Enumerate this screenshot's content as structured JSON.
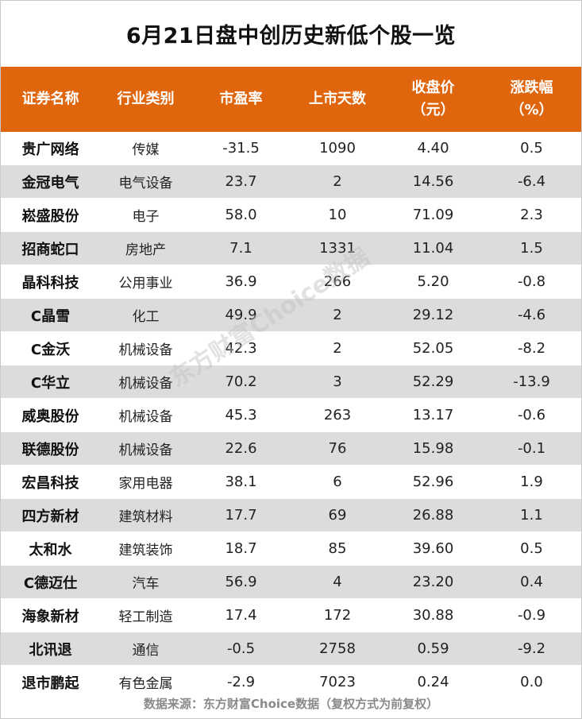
{
  "title": "6月21日盘中创历史新低个股一览",
  "headers": {
    "name": "证券名称",
    "industry": "行业类别",
    "pe": "市盈率",
    "days": "上市天数",
    "close_line1": "收盘价",
    "close_line2": "（元）",
    "change_line1": "涨跌幅",
    "change_line2": "（%）"
  },
  "rows": [
    {
      "name": "贵广网络",
      "industry": "传媒",
      "pe": "-31.5",
      "days": "1090",
      "close": "4.40",
      "change": "0.5"
    },
    {
      "name": "金冠电气",
      "industry": "电气设备",
      "pe": "23.7",
      "days": "2",
      "close": "14.56",
      "change": "-6.4"
    },
    {
      "name": "崧盛股份",
      "industry": "电子",
      "pe": "58.0",
      "days": "10",
      "close": "71.09",
      "change": "2.3"
    },
    {
      "name": "招商蛇口",
      "industry": "房地产",
      "pe": "7.1",
      "days": "1331",
      "close": "11.04",
      "change": "1.5"
    },
    {
      "name": "晶科科技",
      "industry": "公用事业",
      "pe": "36.9",
      "days": "266",
      "close": "5.20",
      "change": "-0.8"
    },
    {
      "name": "C晶雪",
      "industry": "化工",
      "pe": "49.9",
      "days": "2",
      "close": "29.12",
      "change": "-4.6"
    },
    {
      "name": "C金沃",
      "industry": "机械设备",
      "pe": "42.3",
      "days": "2",
      "close": "52.05",
      "change": "-8.2"
    },
    {
      "name": "C华立",
      "industry": "机械设备",
      "pe": "70.2",
      "days": "3",
      "close": "52.29",
      "change": "-13.9"
    },
    {
      "name": "威奥股份",
      "industry": "机械设备",
      "pe": "45.3",
      "days": "263",
      "close": "13.17",
      "change": "-0.6"
    },
    {
      "name": "联德股份",
      "industry": "机械设备",
      "pe": "22.6",
      "days": "76",
      "close": "15.98",
      "change": "-0.1"
    },
    {
      "name": "宏昌科技",
      "industry": "家用电器",
      "pe": "38.1",
      "days": "6",
      "close": "52.96",
      "change": "1.9"
    },
    {
      "name": "四方新材",
      "industry": "建筑材料",
      "pe": "17.7",
      "days": "69",
      "close": "26.88",
      "change": "1.1"
    },
    {
      "name": "太和水",
      "industry": "建筑装饰",
      "pe": "18.7",
      "days": "85",
      "close": "39.60",
      "change": "0.5"
    },
    {
      "name": "C德迈仕",
      "industry": "汽车",
      "pe": "56.9",
      "days": "4",
      "close": "23.20",
      "change": "0.4"
    },
    {
      "name": "海象新材",
      "industry": "轻工制造",
      "pe": "17.4",
      "days": "172",
      "close": "30.88",
      "change": "-0.9"
    },
    {
      "name": "北讯退",
      "industry": "通信",
      "pe": "-0.5",
      "days": "2758",
      "close": "0.59",
      "change": "-9.2"
    },
    {
      "name": "退市鹏起",
      "industry": "有色金属",
      "pe": "-2.9",
      "days": "7023",
      "close": "0.24",
      "change": "0.0"
    }
  ],
  "footer": "数据来源：东方财富Choice数据（复权方式为前复权）",
  "watermark": "东方财富Choice数据",
  "colors": {
    "header_bg": "#e0660d",
    "stripe": "#dcdcdc"
  }
}
